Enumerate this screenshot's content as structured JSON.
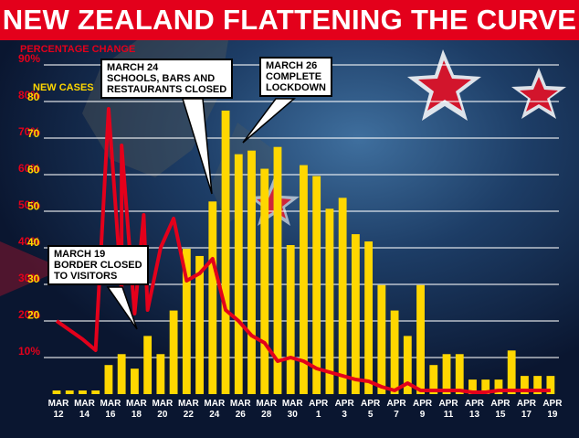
{
  "title": "NEW ZEALAND FLATTENING THE CURVE",
  "colors": {
    "banner": "#e3001b",
    "bars": "#ffd700",
    "line": "#e3001b",
    "pct_axis": "#e3001b",
    "cases_axis": "#ffd700"
  },
  "legend": {
    "percentage": "PERCENTAGE CHANGE",
    "cases": "NEW CASES"
  },
  "annotations": [
    {
      "id": "mar19",
      "text": "MARCH 19\nBORDER CLOSED\nTO VISITORS"
    },
    {
      "id": "mar24",
      "text": "MARCH 24\nSCHOOLS, BARS AND\nRESTAURANTS CLOSED"
    },
    {
      "id": "mar26",
      "text": "MARCH 26\nCOMPLETE\nLOCKDOWN"
    }
  ],
  "chart_data": {
    "type": "bar",
    "title": "NEW ZEALAND FLATTENING THE CURVE",
    "x_ticks": [
      {
        "month": "MAR",
        "day": "12"
      },
      {
        "month": "MAR",
        "day": "14"
      },
      {
        "month": "MAR",
        "day": "16"
      },
      {
        "month": "MAR",
        "day": "18"
      },
      {
        "month": "MAR",
        "day": "20"
      },
      {
        "month": "MAR",
        "day": "22"
      },
      {
        "month": "MAR",
        "day": "24"
      },
      {
        "month": "MAR",
        "day": "26"
      },
      {
        "month": "MAR",
        "day": "28"
      },
      {
        "month": "MAR",
        "day": "30"
      },
      {
        "month": "APR",
        "day": "1"
      },
      {
        "month": "APR",
        "day": "3"
      },
      {
        "month": "APR",
        "day": "5"
      },
      {
        "month": "APR",
        "day": "7"
      },
      {
        "month": "APR",
        "day": "9"
      },
      {
        "month": "APR",
        "day": "11"
      },
      {
        "month": "APR",
        "day": "13"
      },
      {
        "month": "APR",
        "day": "15"
      },
      {
        "month": "APR",
        "day": "17"
      },
      {
        "month": "APR",
        "day": "19"
      }
    ],
    "dates": [
      "Mar 12",
      "Mar 13",
      "Mar 14",
      "Mar 15",
      "Mar 16",
      "Mar 17",
      "Mar 18",
      "Mar 19",
      "Mar 20",
      "Mar 21",
      "Mar 22",
      "Mar 23",
      "Mar 24",
      "Mar 25",
      "Mar 26",
      "Mar 27",
      "Mar 28",
      "Mar 29",
      "Mar 30",
      "Mar 31",
      "Apr 1",
      "Apr 2",
      "Apr 3",
      "Apr 4",
      "Apr 5",
      "Apr 6",
      "Apr 7",
      "Apr 8",
      "Apr 9",
      "Apr 10",
      "Apr 11",
      "Apr 12",
      "Apr 13",
      "Apr 14",
      "Apr 15",
      "Apr 16",
      "Apr 17",
      "Apr 18",
      "Apr 19"
    ],
    "series": [
      {
        "name": "NEW CASES",
        "type": "bar",
        "values": [
          1,
          1,
          1,
          1,
          8,
          11,
          7,
          16,
          11,
          23,
          40,
          38,
          53,
          78,
          66,
          67,
          62,
          68,
          41,
          63,
          60,
          51,
          54,
          44,
          42,
          30,
          23,
          16,
          30,
          8,
          11,
          11,
          4,
          4,
          4,
          12,
          5,
          5,
          5
        ]
      },
      {
        "name": "PERCENTAGE CHANGE",
        "type": "line",
        "values": [
          20,
          15,
          12,
          78,
          29,
          50,
          16,
          24,
          30,
          48,
          29,
          37,
          22,
          15,
          11,
          8,
          6,
          5,
          4,
          4,
          3,
          2,
          1,
          2,
          1,
          1,
          1,
          1,
          0.5,
          0.5,
          0.5,
          0.5,
          0.5,
          0.5,
          0.5,
          0.5,
          0.5,
          0.5,
          0.5
        ],
        "dates": [
          "Mar 12",
          "Mar 14",
          "Mar 16",
          "Mar 17",
          "Mar 18",
          "Mar 19",
          "Mar 19",
          "Mar 20",
          "Mar 21",
          "Mar 23",
          "Mar 24",
          "Mar 25",
          "Mar 26",
          "Mar 27",
          "Mar 28",
          "Mar 29",
          "Mar 30",
          "Mar 31",
          "Apr 1",
          "Apr 2",
          "Apr 3",
          "Apr 4",
          "Apr 5",
          "Apr 6",
          "Apr 7",
          "Apr 8",
          "Apr 9",
          "Apr 10",
          "Apr 11",
          "Apr 12",
          "Apr 13",
          "Apr 14",
          "Apr 15",
          "Apr 16",
          "Apr 17",
          "Apr 18",
          "Apr 19",
          "Apr 19",
          "Apr 19"
        ]
      }
    ],
    "pct_values": [
      {
        "date": "Mar 12",
        "value": 20
      },
      {
        "date": "Mar 14",
        "value": 15
      },
      {
        "date": "Mar 15",
        "value": 12
      },
      {
        "date": "Mar 16",
        "value": 78
      },
      {
        "date": "Mar 17",
        "value": 28
      },
      {
        "date": "Mar 17",
        "value": 68
      },
      {
        "date": "Mar 18",
        "value": 22
      },
      {
        "date": "Mar 18.7",
        "value": 49
      },
      {
        "date": "Mar 19",
        "value": 23
      },
      {
        "date": "Mar 20",
        "value": 40
      },
      {
        "date": "Mar 21",
        "value": 48
      },
      {
        "date": "Mar 22",
        "value": 31
      },
      {
        "date": "Mar 23",
        "value": 33
      },
      {
        "date": "Mar 24",
        "value": 37
      },
      {
        "date": "Mar 25",
        "value": 23
      },
      {
        "date": "Mar 26",
        "value": 20
      },
      {
        "date": "Mar 27",
        "value": 16
      },
      {
        "date": "Mar 28",
        "value": 14
      },
      {
        "date": "Mar 29",
        "value": 9
      },
      {
        "date": "Mar 30",
        "value": 10
      },
      {
        "date": "Mar 31",
        "value": 9
      },
      {
        "date": "Apr 1",
        "value": 7
      },
      {
        "date": "Apr 2",
        "value": 6
      },
      {
        "date": "Apr 3",
        "value": 5
      },
      {
        "date": "Apr 4",
        "value": 4
      },
      {
        "date": "Apr 5",
        "value": 3.5
      },
      {
        "date": "Apr 6",
        "value": 2
      },
      {
        "date": "Apr 7",
        "value": 1
      },
      {
        "date": "Apr 8",
        "value": 3
      },
      {
        "date": "Apr 9",
        "value": 1
      },
      {
        "date": "Apr 10",
        "value": 1
      },
      {
        "date": "Apr 11",
        "value": 1
      },
      {
        "date": "Apr 12",
        "value": 1
      },
      {
        "date": "Apr 13",
        "value": 0.5
      },
      {
        "date": "Apr 14",
        "value": 0.5
      },
      {
        "date": "Apr 15",
        "value": 1
      },
      {
        "date": "Apr 16",
        "value": 1
      },
      {
        "date": "Apr 17",
        "value": 1
      },
      {
        "date": "Apr 18",
        "value": 1
      },
      {
        "date": "Apr 19",
        "value": 1
      }
    ],
    "y_left_pct": {
      "ticks": [
        "10%",
        "20%",
        "30%",
        "40%",
        "50%",
        "60%",
        "70%",
        "80%",
        "90%"
      ],
      "range": [
        0,
        90
      ]
    },
    "y_left_cases": {
      "ticks": [
        "20",
        "30",
        "40",
        "50",
        "60",
        "70",
        "80"
      ],
      "range": [
        0,
        80
      ]
    },
    "grid": true
  }
}
